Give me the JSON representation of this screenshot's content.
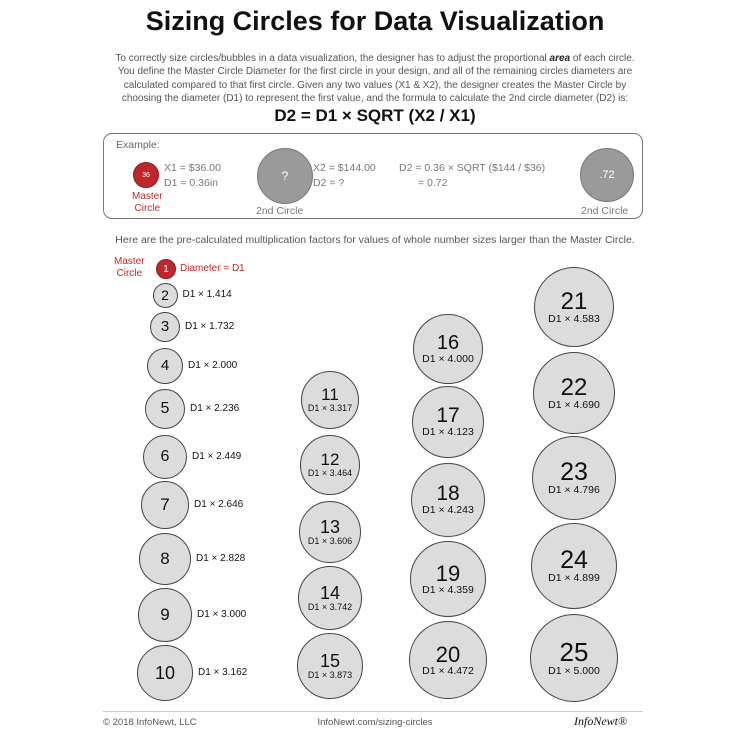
{
  "title": "Sizing Circles for Data Visualization",
  "intro": {
    "part1": "To correctly size circles/bubbles in a data visualization, the designer has to adjust the proportional ",
    "emph": "area",
    "part2": " of each circle. You define the Master Circle Diameter for the first circle in your design, and all of the remaining circles diameters are calculated compared to that first circle. Given any two values (X1 & X2), the designer creates the Master Circle by choosing the diameter (D1) to represent the first value, and the formula to calculate the 2nd circle diameter (D2) is:"
  },
  "formula": "D2 = D1 × SQRT (X2 / X1)",
  "example": {
    "label": "Example:",
    "master_circle_value": "36",
    "master_caption_line1": "Master",
    "master_caption_line2": "Circle",
    "x1": "X1 = $36.00",
    "d1": "D1 = 0.36in",
    "second_circle_value": "?",
    "second_caption": "2nd Circle",
    "x2": "X2 = $144.00",
    "d2": "D2 = ?",
    "calc_line1": "D2  = 0.36 × SQRT ($144 / $36)",
    "calc_line2": "= 0.72",
    "result_circle_value": ".72",
    "result_caption": "2nd Circle"
  },
  "note": "Here are the pre-calculated multiplication factors for values of whole number sizes larger than the Master Circle.",
  "master_legend": {
    "line1": "Master",
    "line2": "Circle",
    "number": "1",
    "label": "Diameter = D1",
    "color": "#c0272d"
  },
  "circles_small": [
    {
      "n": "2",
      "f": "D1 × 1.414"
    },
    {
      "n": "3",
      "f": "D1 × 1.732"
    },
    {
      "n": "4",
      "f": "D1 × 2.000"
    },
    {
      "n": "5",
      "f": "D1 × 2.236"
    },
    {
      "n": "6",
      "f": "D1 × 2.449"
    },
    {
      "n": "7",
      "f": "D1 × 2.646"
    },
    {
      "n": "8",
      "f": "D1 × 2.828"
    },
    {
      "n": "9",
      "f": "D1 × 3.000"
    },
    {
      "n": "10",
      "f": "D1 × 3.162"
    }
  ],
  "circles_col2": [
    {
      "n": "11",
      "f": "D1 × 3.317"
    },
    {
      "n": "12",
      "f": "D1 × 3.464"
    },
    {
      "n": "13",
      "f": "D1 × 3.606"
    },
    {
      "n": "14",
      "f": "D1 × 3.742"
    },
    {
      "n": "15",
      "f": "D1 × 3.873"
    }
  ],
  "circles_col3": [
    {
      "n": "16",
      "f": "D1 × 4.000"
    },
    {
      "n": "17",
      "f": "D1 × 4.123"
    },
    {
      "n": "18",
      "f": "D1 × 4.243"
    },
    {
      "n": "19",
      "f": "D1 × 4.359"
    },
    {
      "n": "20",
      "f": "D1 × 4.472"
    }
  ],
  "circles_col4": [
    {
      "n": "21",
      "f": "D1 × 4.583"
    },
    {
      "n": "22",
      "f": "D1 × 4.690"
    },
    {
      "n": "23",
      "f": "D1 × 4.796"
    },
    {
      "n": "24",
      "f": "D1 × 4.899"
    },
    {
      "n": "25",
      "f": "D1 × 5.000"
    }
  ],
  "footer": {
    "copyright": "© 2018 InfoNewt, LLC",
    "url": "InfoNewt.com/sizing-circles",
    "logo": "InfoNewt®"
  },
  "colors": {
    "accent_red": "#c0272d",
    "circle_fill": "#dcdcdc",
    "example_gray": "#9a9a9a"
  }
}
